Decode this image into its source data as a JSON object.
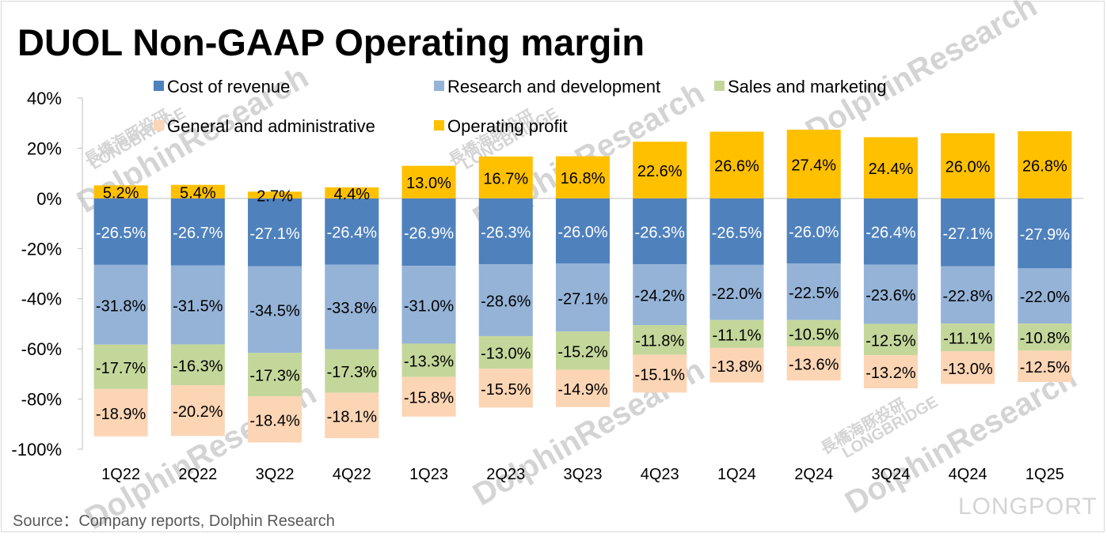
{
  "title": "DUOL Non-GAAP Operating margin",
  "source": "Source：Company reports, Dolphin Research",
  "watermark": {
    "brand": "DolphinResearch",
    "sub": "LONGBRIDGE",
    "cn": "長橋海豚投研",
    "logo": "LONGPORT"
  },
  "chart_data": {
    "type": "bar",
    "stacked": true,
    "categories": [
      "1Q22",
      "2Q22",
      "3Q22",
      "4Q22",
      "1Q23",
      "2Q23",
      "3Q23",
      "4Q23",
      "1Q24",
      "2Q24",
      "3Q24",
      "4Q24",
      "1Q25"
    ],
    "ylim": [
      -100,
      40
    ],
    "yticks": [
      40,
      20,
      0,
      -20,
      -40,
      -60,
      -80,
      -100
    ],
    "ytick_labels": [
      "40%",
      "20%",
      "0%",
      "-20%",
      "-40%",
      "-60%",
      "-80%",
      "-100%"
    ],
    "legend_position": "top",
    "series": [
      {
        "name": "Cost of revenue",
        "color": "#4f81bd",
        "label_color": "#ffffff",
        "values": [
          -26.5,
          -26.7,
          -27.1,
          -26.4,
          -26.9,
          -26.3,
          -26.0,
          -26.3,
          -26.5,
          -26.0,
          -26.4,
          -27.1,
          -27.9
        ],
        "labels": [
          "-26.5%",
          "-26.7%",
          "-27.1%",
          "-26.4%",
          "-26.9%",
          "-26.3%",
          "-26.0%",
          "-26.3%",
          "-26.5%",
          "-26.0%",
          "-26.4%",
          "-27.1%",
          "-27.9%"
        ]
      },
      {
        "name": "Research and development",
        "color": "#95b3d7",
        "label_color": "#000000",
        "values": [
          -31.8,
          -31.5,
          -34.5,
          -33.8,
          -31.0,
          -28.6,
          -27.1,
          -24.2,
          -22.0,
          -22.5,
          -23.6,
          -22.8,
          -22.0
        ],
        "labels": [
          "-31.8%",
          "-31.5%",
          "-34.5%",
          "-33.8%",
          "-31.0%",
          "-28.6%",
          "-27.1%",
          "-24.2%",
          "-22.0%",
          "-22.5%",
          "-23.6%",
          "-22.8%",
          "-22.0%"
        ]
      },
      {
        "name": "Sales and marketing",
        "color": "#c4d79b",
        "label_color": "#000000",
        "values": [
          -17.7,
          -16.3,
          -17.3,
          -17.3,
          -13.3,
          -13.0,
          -15.2,
          -11.8,
          -11.1,
          -10.5,
          -12.5,
          -11.1,
          -10.8
        ],
        "labels": [
          "-17.7%",
          "-16.3%",
          "-17.3%",
          "-17.3%",
          "-13.3%",
          "-13.0%",
          "-15.2%",
          "-11.8%",
          "-11.1%",
          "-10.5%",
          "-12.5%",
          "-11.1%",
          "-10.8%"
        ]
      },
      {
        "name": "General and administrative",
        "color": "#fcd5b5",
        "label_color": "#000000",
        "values": [
          -18.9,
          -20.2,
          -18.4,
          -18.1,
          -15.8,
          -15.5,
          -14.9,
          -15.1,
          -13.8,
          -13.6,
          -13.2,
          -13.0,
          -12.5
        ],
        "labels": [
          "-18.9%",
          "-20.2%",
          "-18.4%",
          "-18.1%",
          "-15.8%",
          "-15.5%",
          "-14.9%",
          "-15.1%",
          "-13.8%",
          "-13.6%",
          "-13.2%",
          "-13.0%",
          "-12.5%"
        ]
      },
      {
        "name": "Operating profit",
        "color": "#ffc000",
        "label_color": "#000000",
        "values": [
          5.2,
          5.4,
          2.7,
          4.4,
          13.0,
          16.7,
          16.8,
          22.6,
          26.6,
          27.4,
          24.4,
          26.0,
          26.8
        ],
        "labels": [
          "5.2%",
          "5.4%",
          "2.7%",
          "4.4%",
          "13.0%",
          "16.7%",
          "16.8%",
          "22.6%",
          "26.6%",
          "27.4%",
          "24.4%",
          "26.0%",
          "26.8%"
        ]
      }
    ]
  }
}
